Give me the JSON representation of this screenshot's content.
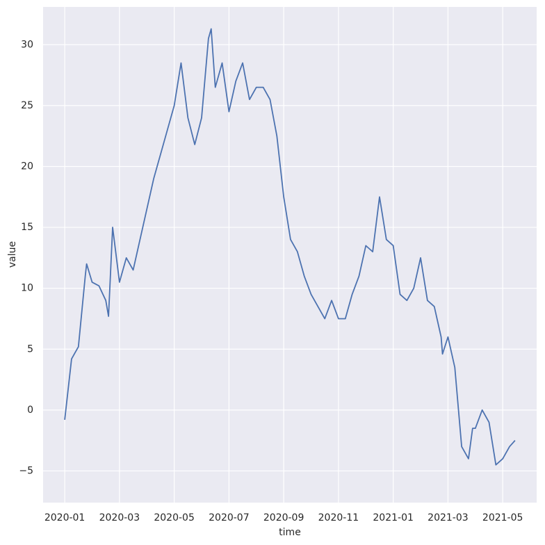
{
  "chart_data": {
    "type": "line",
    "x_label": "time",
    "y_label": "value",
    "x": [
      0,
      0.25,
      0.5,
      0.75,
      0.8,
      1.0,
      1.25,
      1.5,
      1.6,
      1.75,
      2.0,
      2.25,
      2.5,
      2.75,
      3.0,
      3.25,
      3.5,
      3.75,
      4.0,
      4.25,
      4.5,
      4.75,
      5.0,
      5.25,
      5.35,
      5.5,
      5.75,
      6.0,
      6.25,
      6.5,
      6.75,
      7.0,
      7.25,
      7.5,
      7.75,
      8.0,
      8.25,
      8.5,
      8.75,
      9.0,
      9.25,
      9.5,
      9.75,
      10.0,
      10.25,
      10.5,
      10.75,
      11.0,
      11.25,
      11.5,
      11.75,
      12.0,
      12.25,
      12.5,
      12.75,
      13.0,
      13.25,
      13.5,
      13.75,
      13.8,
      14.0,
      14.25,
      14.5,
      14.75,
      14.9,
      15.0,
      15.25,
      15.5,
      15.75,
      16.0,
      16.25,
      16.45
    ],
    "series": [
      {
        "name": "value",
        "color": "#4c72b0",
        "values": [
          -0.8,
          4.2,
          5.2,
          11,
          12,
          10.5,
          10.2,
          9,
          7.7,
          15,
          10.5,
          12.5,
          11.5,
          14,
          16.5,
          19,
          21,
          23,
          25,
          28.5,
          24,
          21.8,
          24,
          30.5,
          31.3,
          26.5,
          28.5,
          24.5,
          27,
          28.5,
          25.5,
          26.5,
          26.5,
          25.5,
          22.5,
          17.5,
          14,
          13,
          11,
          9.5,
          8.5,
          7.5,
          9,
          7.5,
          7.5,
          9.5,
          11,
          13.5,
          13,
          17.5,
          14,
          13.5,
          9.5,
          9,
          10,
          12.5,
          9,
          8.5,
          6,
          4.6,
          6,
          3.5,
          -3,
          -4,
          -1.5,
          -1.5,
          0,
          -1,
          -4.5,
          -4,
          -3,
          -2.5
        ]
      }
    ],
    "xlim": [
      -0.79,
      17.24
    ],
    "ylim": [
      -7.6,
      33.1
    ],
    "xticks": [
      {
        "value": 0,
        "label": "2020-01"
      },
      {
        "value": 2,
        "label": "2020-03"
      },
      {
        "value": 4,
        "label": "2020-05"
      },
      {
        "value": 6,
        "label": "2020-07"
      },
      {
        "value": 8,
        "label": "2020-09"
      },
      {
        "value": 10,
        "label": "2020-11"
      },
      {
        "value": 12,
        "label": "2021-01"
      },
      {
        "value": 14,
        "label": "2021-03"
      },
      {
        "value": 16,
        "label": "2021-05"
      }
    ],
    "yticks": [
      {
        "value": -5,
        "label": "−5"
      },
      0,
      5,
      10,
      15,
      20,
      25,
      30
    ],
    "grid": true,
    "background": "#eaeaf2"
  }
}
